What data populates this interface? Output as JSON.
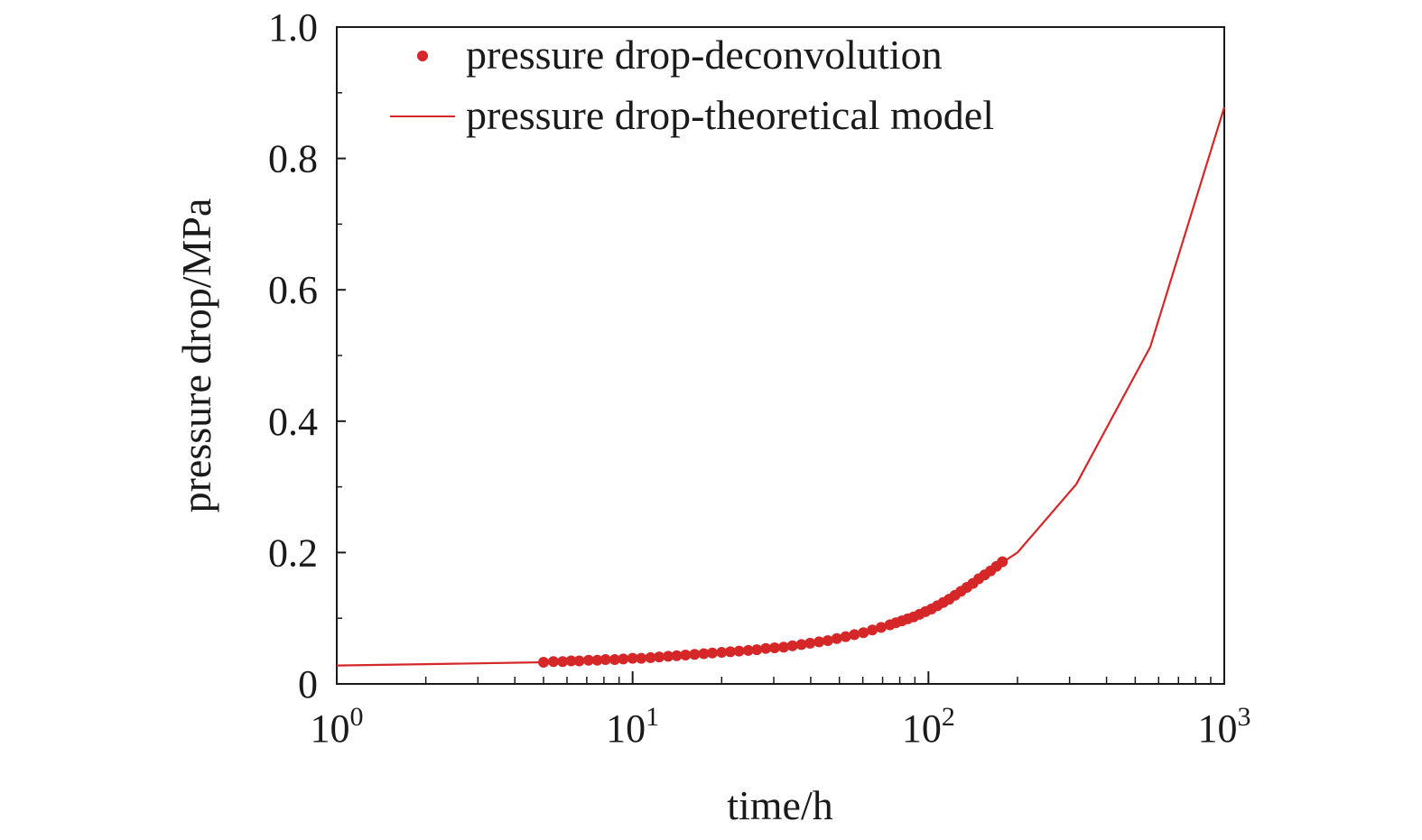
{
  "chart_data": {
    "type": "line",
    "title": "",
    "xlabel": "time/h",
    "ylabel": "pressure drop/MPa",
    "xscale": "log",
    "xlim": [
      1,
      1000
    ],
    "ylim": [
      0,
      1.0
    ],
    "x_ticks": [
      {
        "value": 1,
        "base": "10",
        "exp": "0"
      },
      {
        "value": 10,
        "base": "10",
        "exp": "1"
      },
      {
        "value": 100,
        "base": "10",
        "exp": "2"
      },
      {
        "value": 1000,
        "base": "10",
        "exp": "3"
      }
    ],
    "y_ticks": [
      {
        "value": 0,
        "label": "0"
      },
      {
        "value": 0.2,
        "label": "0.2"
      },
      {
        "value": 0.4,
        "label": "0.4"
      },
      {
        "value": 0.6,
        "label": "0.6"
      },
      {
        "value": 0.8,
        "label": "0.8"
      },
      {
        "value": 1.0,
        "label": "1.0"
      }
    ],
    "grid": false,
    "legend_position": "top-center",
    "series": [
      {
        "name": "pressure drop-deconvolution",
        "type": "scatter",
        "color": "#d62728",
        "x": [
          5.0,
          5.4,
          5.8,
          6.2,
          6.6,
          7.1,
          7.6,
          8.1,
          8.7,
          9.3,
          10.0,
          10.7,
          11.5,
          12.3,
          13.2,
          14.1,
          15.1,
          16.2,
          17.4,
          18.6,
          20.0,
          21.4,
          22.9,
          24.6,
          26.3,
          28.2,
          30.2,
          32.4,
          34.7,
          37.2,
          39.8,
          42.7,
          45.7,
          49.0,
          52.5,
          56.2,
          60.3,
          64.6,
          69.2,
          74.1,
          77.6,
          81.3,
          85.1,
          89.1,
          93.3,
          97.7,
          102.3,
          107.2,
          112.2,
          117.5,
          123.0,
          128.8,
          134.9,
          141.3,
          147.9,
          154.9,
          162.2,
          169.8,
          177.8
        ],
        "y": [
          0.033,
          0.034,
          0.034,
          0.035,
          0.035,
          0.036,
          0.036,
          0.037,
          0.037,
          0.038,
          0.039,
          0.039,
          0.04,
          0.041,
          0.042,
          0.043,
          0.044,
          0.045,
          0.046,
          0.047,
          0.048,
          0.049,
          0.05,
          0.051,
          0.052,
          0.054,
          0.055,
          0.056,
          0.058,
          0.06,
          0.062,
          0.064,
          0.066,
          0.069,
          0.072,
          0.075,
          0.078,
          0.082,
          0.086,
          0.09,
          0.093,
          0.096,
          0.099,
          0.102,
          0.106,
          0.11,
          0.114,
          0.119,
          0.124,
          0.129,
          0.135,
          0.141,
          0.147,
          0.153,
          0.16,
          0.166,
          0.172,
          0.179,
          0.186
        ]
      },
      {
        "name": "pressure drop-theoretical model",
        "type": "line",
        "color": "#d62728",
        "x": [
          1,
          2,
          5,
          10,
          20,
          50,
          100,
          200,
          316,
          562,
          1000
        ],
        "y": [
          0.028,
          0.03,
          0.033,
          0.039,
          0.048,
          0.068,
          0.112,
          0.2,
          0.304,
          0.513,
          0.878
        ]
      }
    ]
  }
}
